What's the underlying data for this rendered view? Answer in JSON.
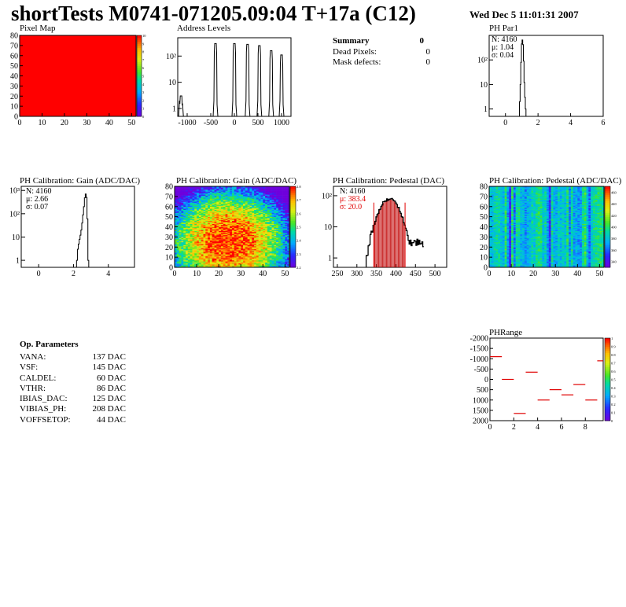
{
  "header": {
    "title": "shortTests M0741-071205.09:04 T+17a (C12)",
    "date": "Wed Dec  5 11:01:31 2007"
  },
  "summary": {
    "title": "Summary",
    "title_value": "0",
    "rows": [
      {
        "label": "Dead Pixels:",
        "value": "0"
      },
      {
        "label": "Mask defects:",
        "value": "0"
      }
    ]
  },
  "parameters": {
    "title": "Op. Parameters",
    "rows": [
      {
        "label": "VANA:",
        "value": "137 DAC"
      },
      {
        "label": "VSF:",
        "value": "145 DAC"
      },
      {
        "label": "CALDEL:",
        "value": "60 DAC"
      },
      {
        "label": "VTHR:",
        "value": "86 DAC"
      },
      {
        "label": "IBIAS_DAC:",
        "value": "125 DAC"
      },
      {
        "label": "VIBIAS_PH:",
        "value": "208 DAC"
      },
      {
        "label": "VOFFSETOP:",
        "value": "44 DAC"
      }
    ]
  },
  "colors": {
    "hist_line": "#000000",
    "stats_red": "#e00000",
    "pedestal_fill": "#c00000",
    "phrange_marker": "#e00000",
    "pixelmap_fill": "#ff0000"
  },
  "chart_data": [
    {
      "id": "pixel-map",
      "type": "heatmap",
      "title": "Pixel Map",
      "xlim": [
        0,
        52
      ],
      "ylim": [
        0,
        80
      ],
      "xticks": [
        0,
        10,
        20,
        30,
        40,
        50
      ],
      "yticks": [
        0,
        10,
        20,
        30,
        40,
        50,
        60,
        70,
        80
      ],
      "zlim": [
        0,
        10
      ],
      "zticks": [
        0,
        1,
        2,
        3,
        4,
        5,
        6,
        7,
        8,
        9,
        10
      ],
      "uniform_value": 10
    },
    {
      "id": "address-levels",
      "type": "bar",
      "title": "Address Levels",
      "xlim": [
        -1200,
        1200
      ],
      "ylim": [
        0.5,
        500
      ],
      "yscale": "log",
      "xticks": [
        -1000,
        -500,
        0,
        500,
        1000
      ],
      "yticks": [
        1,
        10,
        100
      ],
      "ytick_labels": [
        "1",
        "10",
        "10²"
      ],
      "peaks": [
        {
          "x": -1130,
          "height": 3
        },
        {
          "x": -400,
          "height": 300
        },
        {
          "x": 0,
          "height": 300
        },
        {
          "x": 280,
          "height": 280
        },
        {
          "x": 530,
          "height": 250
        },
        {
          "x": 780,
          "height": 160
        },
        {
          "x": 1000,
          "height": 110
        }
      ]
    },
    {
      "id": "ph-par1",
      "type": "bar",
      "title": "PH Par1",
      "xlim": [
        -1,
        6
      ],
      "ylim": [
        0.5,
        1000
      ],
      "yscale": "log",
      "xticks": [
        0,
        2,
        4,
        6
      ],
      "yticks": [
        1,
        10,
        100
      ],
      "ytick_labels": [
        "1",
        "10",
        "10²"
      ],
      "stats": [
        {
          "label": "N: 4160"
        },
        {
          "label": "μ: 1.04"
        },
        {
          "label": "σ: 0.04"
        }
      ],
      "bins": {
        "x": [
          0.88,
          0.92,
          0.96,
          1.0,
          1.04,
          1.08,
          1.12,
          1.16,
          1.2,
          1.24
        ],
        "counts": [
          2,
          10,
          80,
          450,
          650,
          420,
          90,
          12,
          3,
          1
        ]
      }
    },
    {
      "id": "ph-gain",
      "type": "bar",
      "title": "PH Calibration: Gain (ADC/DAC)",
      "xlim": [
        -1,
        5.5
      ],
      "ylim": [
        0.5,
        1500
      ],
      "yscale": "log",
      "xticks": [
        0,
        2,
        4
      ],
      "yticks": [
        1,
        10,
        100,
        1000
      ],
      "ytick_labels": [
        "1",
        "10",
        "10²",
        "10³"
      ],
      "stats": [
        {
          "label": "N: 4160"
        },
        {
          "label": "μ: 2.66"
        },
        {
          "label": "σ: 0.07"
        }
      ],
      "bins": {
        "x": [
          2.2,
          2.25,
          2.3,
          2.35,
          2.4,
          2.45,
          2.5,
          2.55,
          2.6,
          2.65,
          2.7,
          2.75,
          2.8,
          2.85
        ],
        "counts": [
          1,
          3,
          5,
          8,
          12,
          20,
          40,
          90,
          200,
          480,
          700,
          500,
          60,
          1
        ]
      }
    },
    {
      "id": "ph-gain-map",
      "type": "heatmap",
      "title": "PH Calibration: Gain (ADC/DAC)",
      "xlim": [
        0,
        52
      ],
      "ylim": [
        0,
        80
      ],
      "xticks": [
        0,
        10,
        20,
        30,
        40,
        50
      ],
      "yticks": [
        0,
        10,
        20,
        30,
        40,
        50,
        60,
        70,
        80
      ],
      "zlim": [
        2.2,
        2.8
      ],
      "zticks": [
        2.2,
        2.3,
        2.4,
        2.5,
        2.6,
        2.7,
        2.8
      ],
      "pattern": "gain-map",
      "grid": [
        52,
        80
      ]
    },
    {
      "id": "ph-pedestal",
      "type": "bar",
      "title": "PH Calibration: Pedestal (DAC)",
      "xlim": [
        240,
        530
      ],
      "ylim": [
        0.5,
        200
      ],
      "yscale": "log",
      "xticks": [
        250,
        300,
        350,
        400,
        450,
        500
      ],
      "yticks": [
        1,
        10,
        100
      ],
      "ytick_labels": [
        "1",
        "10",
        "10²"
      ],
      "stats": [
        {
          "label": "N: 4160",
          "color": "black"
        },
        {
          "label": "μ: 383.4",
          "color": "red"
        },
        {
          "label": "σ: 20.0",
          "color": "red"
        }
      ],
      "markers": [
        343.4,
        423.4
      ],
      "mean": 383.4,
      "sigma": 20.0,
      "peak": 80
    },
    {
      "id": "ph-pedestal-map",
      "type": "heatmap",
      "title": "PH Calibration: Pedestal (ADC/DAC)",
      "xlim": [
        0,
        52
      ],
      "ylim": [
        0,
        80
      ],
      "xticks": [
        0,
        10,
        20,
        30,
        40,
        50
      ],
      "yticks": [
        0,
        10,
        20,
        30,
        40,
        50,
        60,
        70,
        80
      ],
      "zlim": [
        330,
        470
      ],
      "zticks": [
        340,
        360,
        380,
        400,
        420,
        440,
        460
      ],
      "pattern": "pedestal-map",
      "grid": [
        52,
        80
      ]
    },
    {
      "id": "ph-range",
      "type": "scatter",
      "title": "PHRange",
      "xlim": [
        0,
        9.5
      ],
      "ylim": [
        -2000,
        2000
      ],
      "xticks": [
        0,
        2,
        4,
        6,
        8
      ],
      "yticks": [
        -2000,
        -1500,
        -1000,
        -500,
        0,
        500,
        1000,
        1500,
        2000
      ],
      "ytick_labels": [
        "2000",
        "1500",
        "1000",
        "500",
        "0",
        "-500",
        "-1000",
        "-1500",
        "-2000"
      ],
      "zlim": [
        0,
        1
      ],
      "zticks": [
        0,
        0.1,
        0.2,
        0.3,
        0.4,
        0.5,
        0.6,
        0.7,
        0.8,
        0.9,
        1
      ],
      "segments": [
        {
          "x": 0,
          "y": 1100
        },
        {
          "x": 1,
          "y": 0
        },
        {
          "x": 2,
          "y": -1650
        },
        {
          "x": 3,
          "y": 350
        },
        {
          "x": 4,
          "y": -1000
        },
        {
          "x": 5,
          "y": -500
        },
        {
          "x": 6,
          "y": -750
        },
        {
          "x": 7,
          "y": -250
        },
        {
          "x": 8,
          "y": -1000
        },
        {
          "x": 9,
          "y": 900
        }
      ]
    }
  ]
}
